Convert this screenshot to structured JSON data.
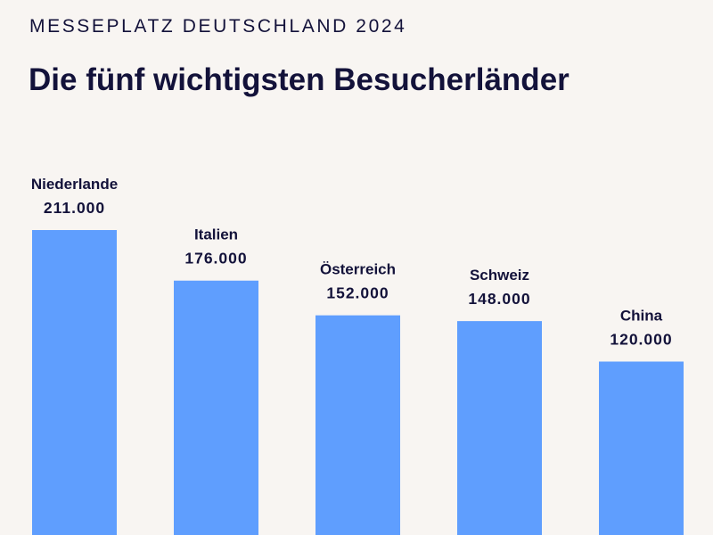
{
  "header": {
    "kicker": "MESSEPLATZ DEUTSCHLAND 2024",
    "title": "Die fünf wichtigsten Besucherländer"
  },
  "colors": {
    "bar": "#5f9efe",
    "text": "#13123a",
    "background": "#f8f5f2"
  },
  "chart_data": {
    "type": "bar",
    "title": "Die fünf wichtigsten Besucherländer",
    "subtitle": "MESSEPLATZ DEUTSCHLAND 2024",
    "categories": [
      "Niederlande",
      "Italien",
      "Österreich",
      "Schweiz",
      "China"
    ],
    "values": [
      211000,
      176000,
      152000,
      148000,
      120000
    ],
    "value_labels": [
      "211.000",
      "176.000",
      "152.000",
      "148.000",
      "120.000"
    ],
    "xlabel": "",
    "ylabel": "",
    "ylim": [
      0,
      211000
    ],
    "grid": false,
    "legend": "none"
  }
}
